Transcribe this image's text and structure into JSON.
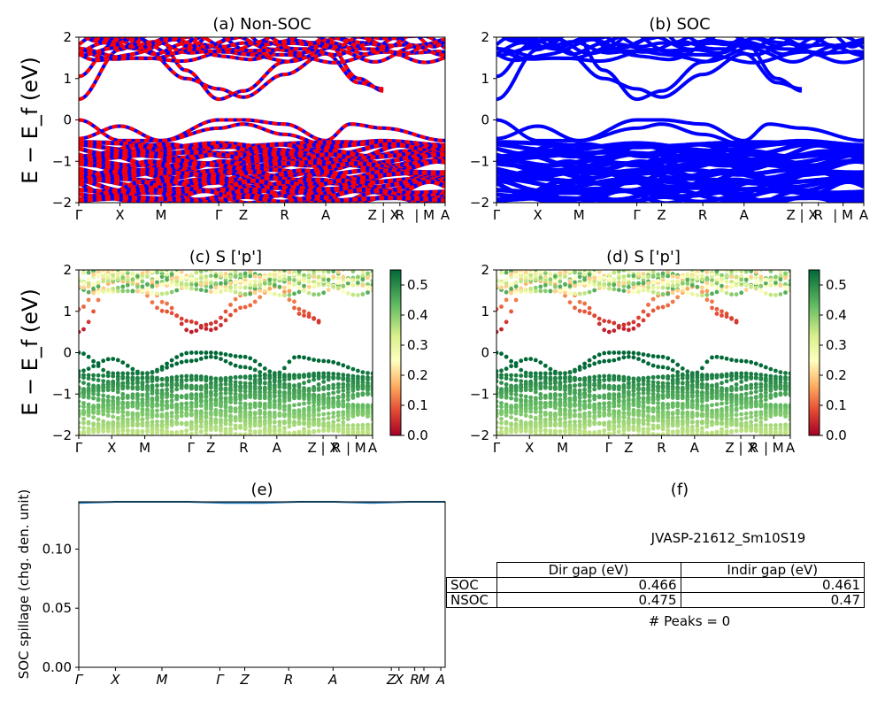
{
  "chart_data": [
    {
      "id": "a",
      "type": "line",
      "title": "(a) Non-SOC",
      "ylabel": "E − E_f (eV)",
      "ylim": [
        -2,
        2
      ],
      "yticks": [
        "−2",
        "−1",
        "0",
        "1",
        "2"
      ],
      "kpath": [
        {
          "label": "Γ",
          "x": 0
        },
        {
          "label": "X",
          "x": 0.5
        },
        {
          "label": "M",
          "x": 1
        },
        {
          "label": "Γ",
          "x": 1.7
        },
        {
          "label": "Z",
          "x": 2
        },
        {
          "label": "R",
          "x": 2.5
        },
        {
          "label": "A",
          "x": 3
        },
        {
          "label": "Z | X",
          "x": 3.7
        },
        {
          "label": "R",
          "x": 3.9
        },
        {
          "label": "| M",
          "x": 4.2
        },
        {
          "label": "A",
          "x": 4.45
        }
      ],
      "colors": {
        "up": "#ff0000",
        "down": "#0000ff"
      }
    },
    {
      "id": "b",
      "type": "line",
      "title": "(b) SOC",
      "ylim": [
        -2,
        2
      ],
      "yticks": [
        "−2",
        "−1",
        "0",
        "1",
        "2"
      ],
      "colors": {
        "band": "#0000ff"
      }
    },
    {
      "id": "c",
      "type": "scatter",
      "title": "(c)  S ['p']",
      "ylabel": "E − E_f (eV)",
      "ylim": [
        -2,
        2
      ],
      "colorbar": {
        "range": [
          0,
          0.55
        ],
        "ticks": [
          "0.0",
          "0.1",
          "0.2",
          "0.3",
          "0.4",
          "0.5"
        ],
        "colormap": "RdYlGn"
      }
    },
    {
      "id": "d",
      "type": "scatter",
      "title": "(d) S ['p']",
      "ylim": [
        -2,
        2
      ],
      "colorbar": {
        "range": [
          0,
          0.55
        ],
        "ticks": [
          "0.0",
          "0.1",
          "0.2",
          "0.3",
          "0.4",
          "0.5"
        ],
        "colormap": "RdYlGn"
      }
    },
    {
      "id": "e",
      "type": "line",
      "title": "(e)",
      "ylabel": "SOC spillage (chg. den. unit)",
      "ylim": [
        0,
        0.14
      ],
      "yticks": [
        "0.00",
        "0.05",
        "0.10"
      ],
      "xticks": [
        "Γ",
        "X",
        "M",
        "Γ",
        "Z",
        "R",
        "A",
        "Z",
        "X",
        "R",
        "M",
        "A"
      ],
      "series": [
        {
          "x": [
            0,
            1,
            2,
            3,
            4,
            5,
            6,
            7,
            8,
            9,
            10
          ],
          "values": [
            0.139,
            0.14,
            0.14,
            0.14,
            0.139,
            0.139,
            0.14,
            0.14,
            0.139,
            0.14,
            0.14
          ]
        }
      ],
      "color": "#1f77b4"
    },
    {
      "id": "f",
      "type": "table",
      "title": "(f)",
      "material": "JVASP-21612_Sm10S19",
      "columns": [
        "Dir gap (eV)",
        "Indir gap (eV)"
      ],
      "rows": [
        {
          "label": "SOC",
          "values": [
            "0.466",
            "0.461"
          ]
        },
        {
          "label": "NSOC",
          "values": [
            "0.475",
            "0.47"
          ]
        }
      ],
      "peaks": "# Peaks = 0"
    }
  ]
}
